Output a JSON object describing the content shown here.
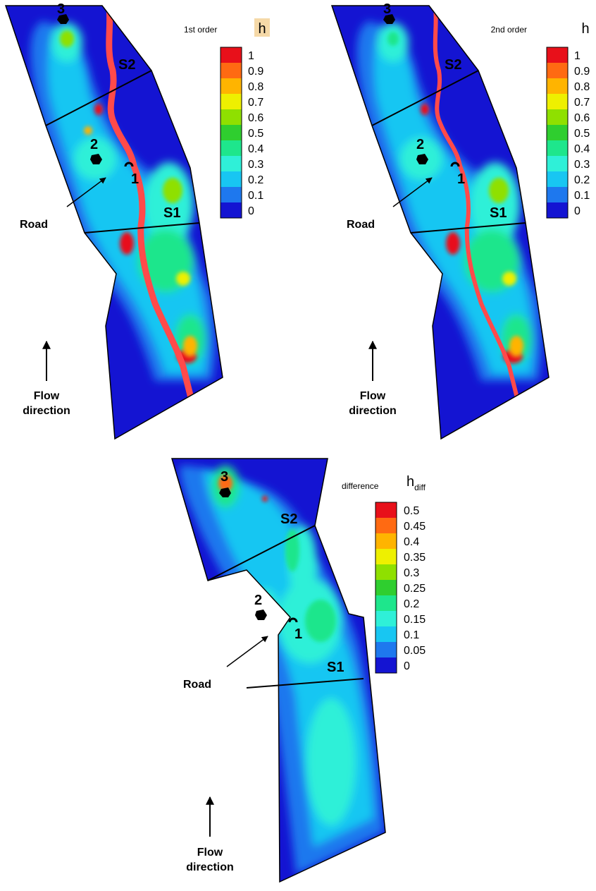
{
  "panels": [
    {
      "key": "first",
      "title": "1st order",
      "variable": "h",
      "variable_sub": "",
      "variable_highlight": "#f5d9a8",
      "labels": {
        "p1": "1",
        "p2": "2",
        "p3": "3",
        "s1": "S1",
        "s2": "S2",
        "road": "Road",
        "flow1": "Flow",
        "flow2": "direction"
      }
    },
    {
      "key": "second",
      "title": "2nd order",
      "variable": "h",
      "variable_sub": "",
      "variable_highlight": "",
      "labels": {
        "p1": "1",
        "p2": "2",
        "p3": "3",
        "s1": "S1",
        "s2": "S2",
        "road": "Road",
        "flow1": "Flow",
        "flow2": "direction"
      }
    },
    {
      "key": "diff",
      "title": "difference",
      "variable": "h",
      "variable_sub": "diff",
      "variable_highlight": "",
      "labels": {
        "p1": "1",
        "p2": "2",
        "p3": "3",
        "s1": "S1",
        "s2": "S2",
        "road": "Road",
        "flow1": "Flow",
        "flow2": "direction"
      }
    }
  ],
  "chart_data": [
    {
      "type": "heatmap",
      "title": "1st order",
      "colorbar_label": "h",
      "colorbar_ticks": [
        "1",
        "0.9",
        "0.8",
        "0.7",
        "0.6",
        "0.5",
        "0.4",
        "0.3",
        "0.2",
        "0.1",
        "0"
      ],
      "colorbar_range": [
        0,
        1
      ],
      "colors": [
        "#e8101a",
        "#ff6a12",
        "#ffb400",
        "#eef000",
        "#8fe000",
        "#2fce2f",
        "#1ee68c",
        "#2ff0d8",
        "#18c6f2",
        "#1e78ee",
        "#1414d2"
      ],
      "annotations": [
        "1",
        "2",
        "3",
        "S1",
        "S2",
        "Road",
        "Flow direction"
      ]
    },
    {
      "type": "heatmap",
      "title": "2nd order",
      "colorbar_label": "h",
      "colorbar_ticks": [
        "1",
        "0.9",
        "0.8",
        "0.7",
        "0.6",
        "0.5",
        "0.4",
        "0.3",
        "0.2",
        "0.1",
        "0"
      ],
      "colorbar_range": [
        0,
        1
      ],
      "colors": [
        "#e8101a",
        "#ff6a12",
        "#ffb400",
        "#eef000",
        "#8fe000",
        "#2fce2f",
        "#1ee68c",
        "#2ff0d8",
        "#18c6f2",
        "#1e78ee",
        "#1414d2"
      ],
      "annotations": [
        "1",
        "2",
        "3",
        "S1",
        "S2",
        "Road",
        "Flow direction"
      ]
    },
    {
      "type": "heatmap",
      "title": "difference",
      "colorbar_label": "h_diff",
      "colorbar_ticks": [
        "0.5",
        "0.45",
        "0.4",
        "0.35",
        "0.3",
        "0.25",
        "0.2",
        "0.15",
        "0.1",
        "0.05",
        "0"
      ],
      "colorbar_range": [
        0,
        0.5
      ],
      "colors": [
        "#e8101a",
        "#ff6a12",
        "#ffb400",
        "#eef000",
        "#8fe000",
        "#2fce2f",
        "#1ee68c",
        "#2ff0d8",
        "#18c6f2",
        "#1e78ee",
        "#1414d2"
      ],
      "annotations": [
        "1",
        "2",
        "3",
        "S1",
        "S2",
        "Road",
        "Flow direction"
      ]
    }
  ]
}
